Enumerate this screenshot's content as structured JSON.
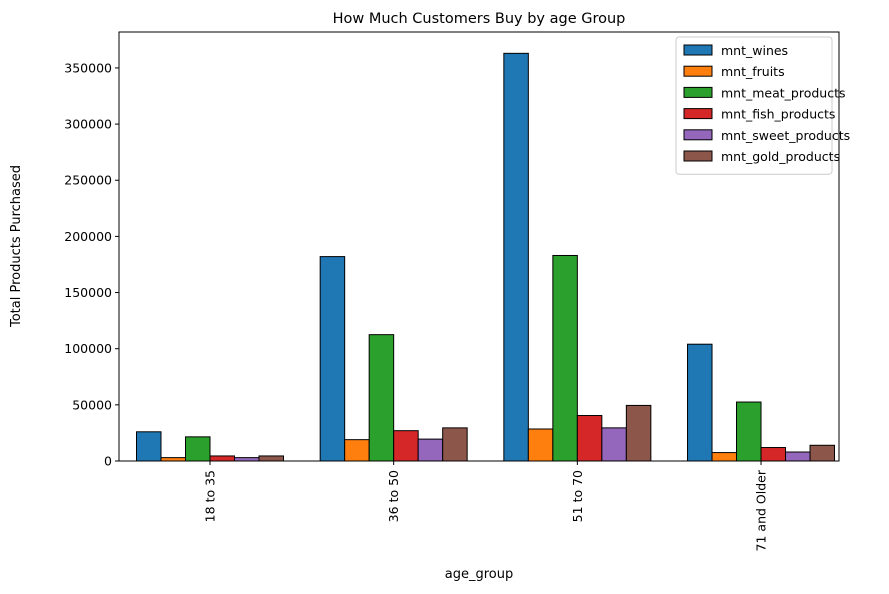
{
  "chart_data": {
    "type": "bar",
    "title": "How Much Customers Buy by age Group",
    "xlabel": "age_group",
    "ylabel": "Total Products Purchased",
    "categories": [
      "18 to 35",
      "36 to 50",
      "51 to 70",
      "71 and Older"
    ],
    "ylim": [
      0,
      382000
    ],
    "yticks": [
      0,
      50000,
      100000,
      150000,
      200000,
      250000,
      300000,
      350000
    ],
    "ytick_labels": [
      "0",
      "50000",
      "100000",
      "150000",
      "200000",
      "250000",
      "300000",
      "350000"
    ],
    "grid": false,
    "legend_position": "top-right",
    "series": [
      {
        "name": "mnt_wines",
        "color": "#1f77b4",
        "values": [
          26000,
          182000,
          363000,
          104000
        ]
      },
      {
        "name": "mnt_fruits",
        "color": "#ff7f0e",
        "values": [
          3000,
          19000,
          28500,
          7500
        ]
      },
      {
        "name": "mnt_meat_products",
        "color": "#2ca02c",
        "values": [
          21500,
          112500,
          183000,
          52500
        ]
      },
      {
        "name": "mnt_fish_products",
        "color": "#d62728",
        "values": [
          4500,
          27000,
          40500,
          12000
        ]
      },
      {
        "name": "mnt_sweet_products",
        "color": "#9467bd",
        "values": [
          3000,
          19500,
          29500,
          8000
        ]
      },
      {
        "name": "mnt_gold_products",
        "color": "#8c564b",
        "values": [
          4500,
          29500,
          49500,
          14000
        ]
      }
    ]
  }
}
